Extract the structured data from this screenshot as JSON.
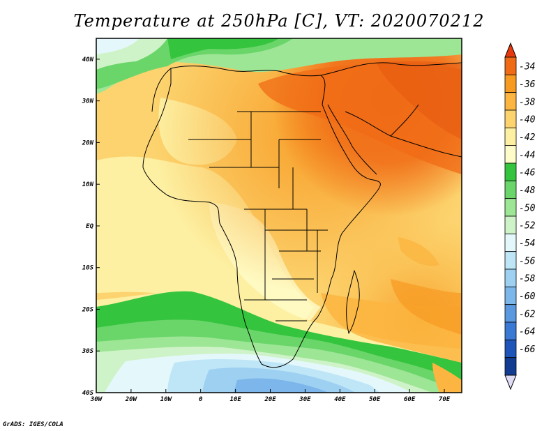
{
  "title": "Temperature at 250hPa [C], VT: 2020070212",
  "credit": "GrADS: IGES/COLA",
  "map": {
    "lon_range": [
      -30,
      75
    ],
    "lat_range": [
      -40,
      45
    ],
    "x_ticks": [
      {
        "lon": -30,
        "label": "30W"
      },
      {
        "lon": -20,
        "label": "20W"
      },
      {
        "lon": -10,
        "label": "10W"
      },
      {
        "lon": 0,
        "label": "0"
      },
      {
        "lon": 10,
        "label": "10E"
      },
      {
        "lon": 20,
        "label": "20E"
      },
      {
        "lon": 30,
        "label": "30E"
      },
      {
        "lon": 40,
        "label": "40E"
      },
      {
        "lon": 50,
        "label": "50E"
      },
      {
        "lon": 60,
        "label": "60E"
      },
      {
        "lon": 70,
        "label": "70E"
      }
    ],
    "y_ticks": [
      {
        "lat": 40,
        "label": "40N"
      },
      {
        "lat": 30,
        "label": "30N"
      },
      {
        "lat": 20,
        "label": "20N"
      },
      {
        "lat": 10,
        "label": "10N"
      },
      {
        "lat": 0,
        "label": "EQ"
      },
      {
        "lat": -10,
        "label": "10S"
      },
      {
        "lat": -20,
        "label": "20S"
      },
      {
        "lat": -30,
        "label": "30S"
      },
      {
        "lat": -40,
        "label": "40S"
      }
    ]
  },
  "colorbar": {
    "labels": [
      "-34",
      "-36",
      "-38",
      "-40",
      "-42",
      "-44",
      "-46",
      "-48",
      "-50",
      "-52",
      "-54",
      "-56",
      "-58",
      "-60",
      "-62",
      "-64",
      "-66"
    ],
    "colors": [
      "#f06b16",
      "#f79a22",
      "#fbb540",
      "#fcd36e",
      "#fdf0a2",
      "#fefdca",
      "#35c43e",
      "#6ad66a",
      "#9de695",
      "#cff3c8",
      "#e4f8fb",
      "#bfe6f7",
      "#9dd0f1",
      "#7cb6ea",
      "#5a98e0",
      "#3b7ad4",
      "#1e55b8",
      "#123c91"
    ],
    "top_cap_color": "#e63a0e",
    "bottom_cap_color": "#e0dcf6"
  }
}
